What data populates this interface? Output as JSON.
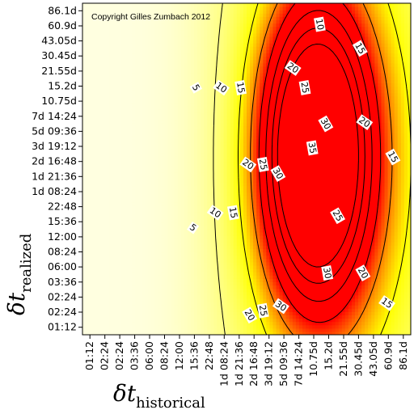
{
  "chart_data": {
    "type": "heatmap",
    "annotation": "Copyright Gilles Zumbach 2012",
    "xlabel": {
      "symbol": "δt",
      "subscript": "historical"
    },
    "ylabel": {
      "symbol": "δt",
      "subscript": "realized"
    },
    "x_ticks": [
      "01:12",
      "02:24",
      "02:24",
      "03:36",
      "06:00",
      "08:24",
      "12:00",
      "15:36",
      "22:48",
      "1d 08:24",
      "1d 21:36",
      "2d 16:48",
      "3d 19:12",
      "5d 09:36",
      "7d 14:24",
      "10.75d",
      "15.2d",
      "21.55d",
      "30.45d",
      "43.05d",
      "60.9d",
      "86.1d"
    ],
    "y_ticks": [
      "01:12",
      "02:24",
      "02:24",
      "03:36",
      "06:00",
      "08:24",
      "12:00",
      "15:36",
      "22:48",
      "1d 08:24",
      "1d 21:36",
      "2d 16:48",
      "3d 19:12",
      "5d 09:36",
      "7d 14:24",
      "10.75d",
      "15.2d",
      "21.55d",
      "30.45d",
      "43.05d",
      "60.9d",
      "86.1d"
    ],
    "contour_levels": [
      5,
      10,
      15,
      20,
      25,
      30,
      35
    ],
    "contour_labels": [
      {
        "text": "10",
        "x": 15.4,
        "y": 20.1
      },
      {
        "text": "15",
        "x": 18.1,
        "y": 18.5
      },
      {
        "text": "20",
        "x": 13.6,
        "y": 17.2
      },
      {
        "text": "25",
        "x": 14.4,
        "y": 15.9
      },
      {
        "text": "5",
        "x": 7.1,
        "y": 15.9
      },
      {
        "text": "10",
        "x": 8.8,
        "y": 15.9
      },
      {
        "text": "15",
        "x": 10.1,
        "y": 15.9
      },
      {
        "text": "30",
        "x": 15.8,
        "y": 13.5
      },
      {
        "text": "20",
        "x": 18.4,
        "y": 13.6
      },
      {
        "text": "35",
        "x": 14.9,
        "y": 11.9
      },
      {
        "text": "15",
        "x": 20.3,
        "y": 11.3
      },
      {
        "text": "20",
        "x": 10.6,
        "y": 10.8
      },
      {
        "text": "25",
        "x": 11.6,
        "y": 10.8
      },
      {
        "text": "30",
        "x": 12.6,
        "y": 10.2
      },
      {
        "text": "10",
        "x": 8.4,
        "y": 7.6
      },
      {
        "text": "15",
        "x": 9.6,
        "y": 7.6
      },
      {
        "text": "25",
        "x": 16.6,
        "y": 7.4
      },
      {
        "text": "5",
        "x": 6.9,
        "y": 6.6
      },
      {
        "text": "30",
        "x": 15.9,
        "y": 3.6
      },
      {
        "text": "20",
        "x": 18.3,
        "y": 3.6
      },
      {
        "text": "30",
        "x": 12.8,
        "y": 1.4
      },
      {
        "text": "25",
        "x": 11.6,
        "y": 1.1
      },
      {
        "text": "20",
        "x": 10.7,
        "y": 0.8
      },
      {
        "text": "15",
        "x": 19.9,
        "y": 1.6
      }
    ],
    "colors": {
      "low": "#ffffee",
      "mid": "#ffff00",
      "high": "#ff0000",
      "contour": "#000000"
    }
  }
}
